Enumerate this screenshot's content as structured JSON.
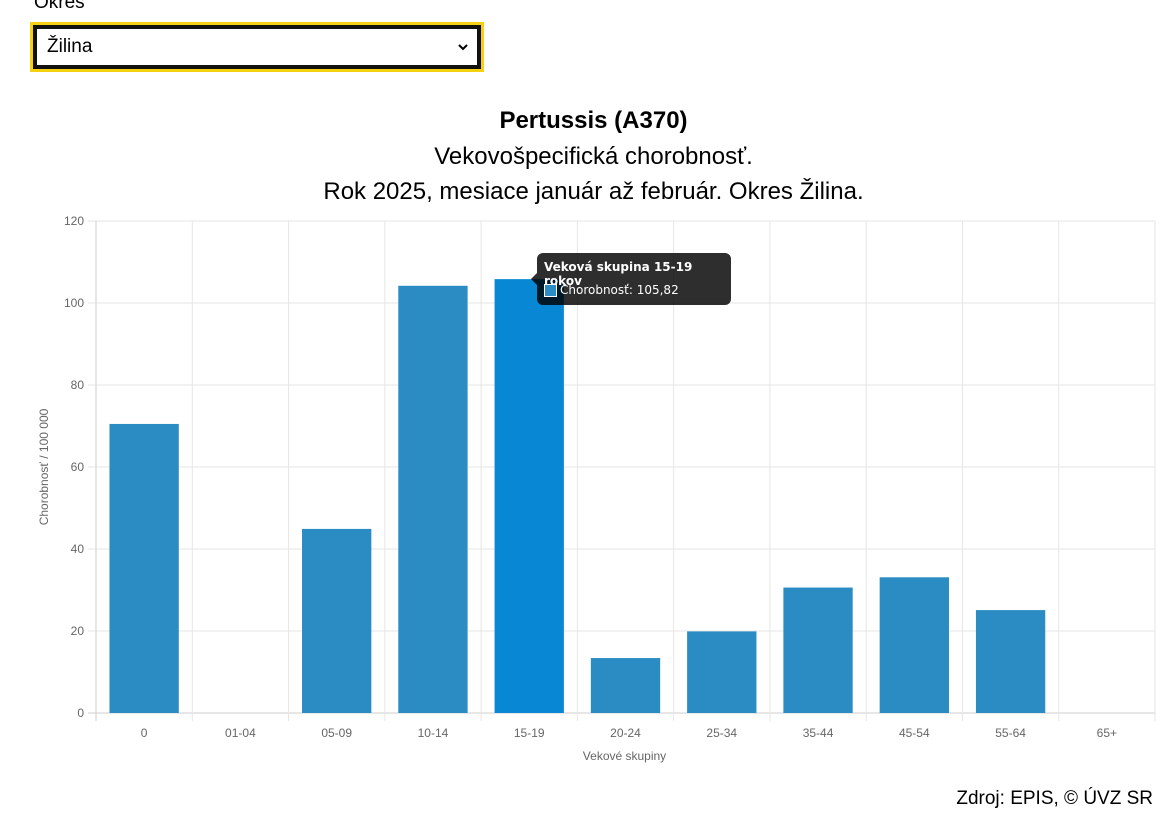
{
  "filter": {
    "label": "Okres",
    "selected": "Žilina"
  },
  "chart_data": {
    "type": "bar",
    "title": "Pertussis (A370)",
    "subtitle_1": "Vekovošpecifická chorobnosť.",
    "subtitle_2": "Rok 2025, mesiace január až február. Okres Žilina.",
    "xlabel": "Vekové skupiny",
    "ylabel": "Chorobnosť / 100 000",
    "ylim": [
      0,
      120
    ],
    "yticks": [
      0,
      20,
      40,
      60,
      80,
      100,
      120
    ],
    "categories": [
      "0",
      "01-04",
      "05-09",
      "10-14",
      "15-19",
      "20-24",
      "25-34",
      "35-44",
      "45-54",
      "55-64",
      "65+"
    ],
    "series": [
      {
        "name": "Chorobnosť",
        "values": [
          70.5,
          0,
          44.9,
          104.2,
          105.82,
          13.4,
          19.9,
          30.6,
          33.1,
          25.1,
          0
        ]
      }
    ],
    "grid": true,
    "legend": "none",
    "bar_color": "#2b8cc4",
    "highlight_color": "#0787d4",
    "highlight_index": 4,
    "tooltip": {
      "title": "Veková skupina 15-19 rokov",
      "label": "Chorobnosť: 105,82"
    }
  },
  "source": "Zdroj: EPIS, © ÚVZ SR"
}
